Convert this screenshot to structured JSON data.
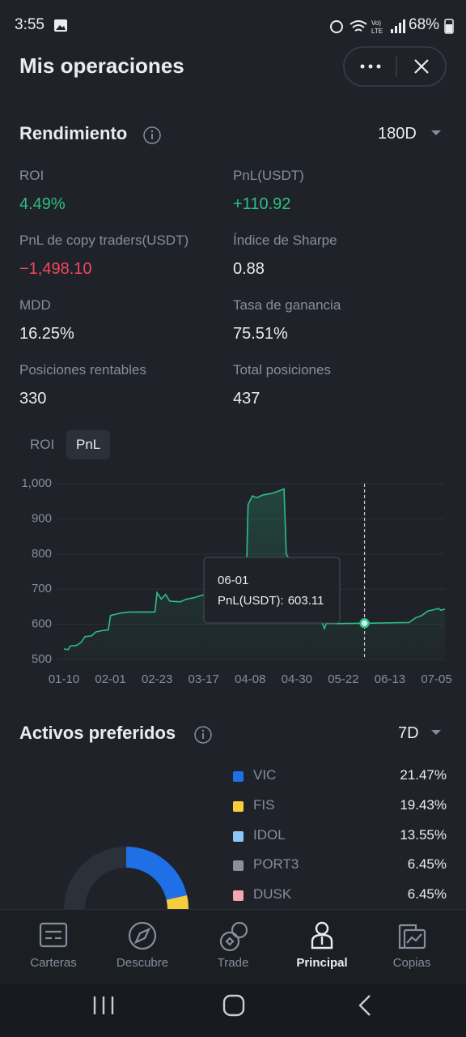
{
  "status_bar": {
    "time": "3:55",
    "battery": "68%"
  },
  "header": {
    "title": "Mis operaciones"
  },
  "performance": {
    "title": "Rendimiento",
    "period": "180D",
    "metrics": [
      {
        "label": "ROI",
        "value": "4.49%",
        "tone": "positive"
      },
      {
        "label": "PnL(USDT)",
        "value": "+110.92",
        "tone": "positive"
      },
      {
        "label": "PnL de copy traders(USDT)",
        "value": "−1,498.10",
        "tone": "negative"
      },
      {
        "label": "Índice de Sharpe",
        "value": "0.88",
        "tone": "neutral"
      },
      {
        "label": "MDD",
        "value": "16.25%",
        "tone": "neutral"
      },
      {
        "label": "Tasa de ganancia",
        "value": "75.51%",
        "tone": "neutral"
      },
      {
        "label": "Posiciones rentables",
        "value": "330",
        "tone": "neutral"
      },
      {
        "label": "Total posiciones",
        "value": "437",
        "tone": "neutral"
      }
    ]
  },
  "chart_tabs": {
    "items": [
      "ROI",
      "PnL"
    ],
    "active": 1
  },
  "chart_data": [
    {
      "type": "line",
      "color": "#2ebd85",
      "grid": true,
      "x": [
        "01-10",
        "01-12",
        "01-13",
        "01-16",
        "01-18",
        "01-20",
        "01-23",
        "01-25",
        "01-28",
        "01-31",
        "02-01",
        "02-03",
        "02-06",
        "02-10",
        "02-22",
        "02-23",
        "02-25",
        "02-27",
        "03-01",
        "03-06",
        "03-09",
        "03-12",
        "03-17",
        "03-22",
        "03-28",
        "04-02",
        "04-06",
        "04-07",
        "04-09",
        "04-11",
        "04-14",
        "04-18",
        "04-21",
        "04-24",
        "04-25",
        "04-29",
        "05-05",
        "05-10",
        "05-12",
        "05-13",
        "05-14",
        "05-20",
        "06-01",
        "06-10",
        "06-22",
        "06-25",
        "06-28",
        "07-01",
        "07-04",
        "07-06",
        "07-07",
        "07-09"
      ],
      "values": [
        530,
        528,
        538,
        540,
        548,
        565,
        567,
        578,
        582,
        584,
        625,
        628,
        632,
        635,
        635,
        690,
        672,
        685,
        666,
        664,
        672,
        675,
        684,
        688,
        695,
        690,
        685,
        940,
        965,
        960,
        968,
        972,
        978,
        985,
        800,
        760,
        680,
        630,
        605,
        588,
        603,
        602,
        603.11,
        604,
        605,
        618,
        625,
        638,
        642,
        645,
        640,
        643
      ],
      "xlim": [
        "01-10",
        "07-09"
      ],
      "xticks": [
        "01-10",
        "02-01",
        "02-23",
        "03-17",
        "04-08",
        "04-30",
        "05-22",
        "06-13",
        "07-05"
      ],
      "ylim": [
        500,
        1000
      ],
      "yticks": [
        500,
        600,
        700,
        800,
        900,
        {
          "value": 1000,
          "label": "1,000"
        }
      ],
      "tooltip": {
        "x": "06-01",
        "label": "PnL(USDT):",
        "value": 603.11
      }
    },
    {
      "type": "donut",
      "title": "Activos preferidos",
      "period": "7D",
      "categories": [
        "VIC",
        "FIS",
        "IDOL",
        "PORT3",
        "DUSK"
      ],
      "values": [
        21.47,
        19.43,
        13.55,
        6.45,
        6.45
      ],
      "value_labels": [
        "21.47%",
        "19.43%",
        "13.55%",
        "6.45%",
        "6.45%"
      ],
      "colors": [
        "#1f6fe6",
        "#f5cd3d",
        "#8ec5f7",
        "#8a8f98",
        "#f4a5ae"
      ]
    }
  ],
  "nav": {
    "items": [
      "Carteras",
      "Descubre",
      "Trade",
      "Principal",
      "Copias"
    ],
    "active": 3
  }
}
